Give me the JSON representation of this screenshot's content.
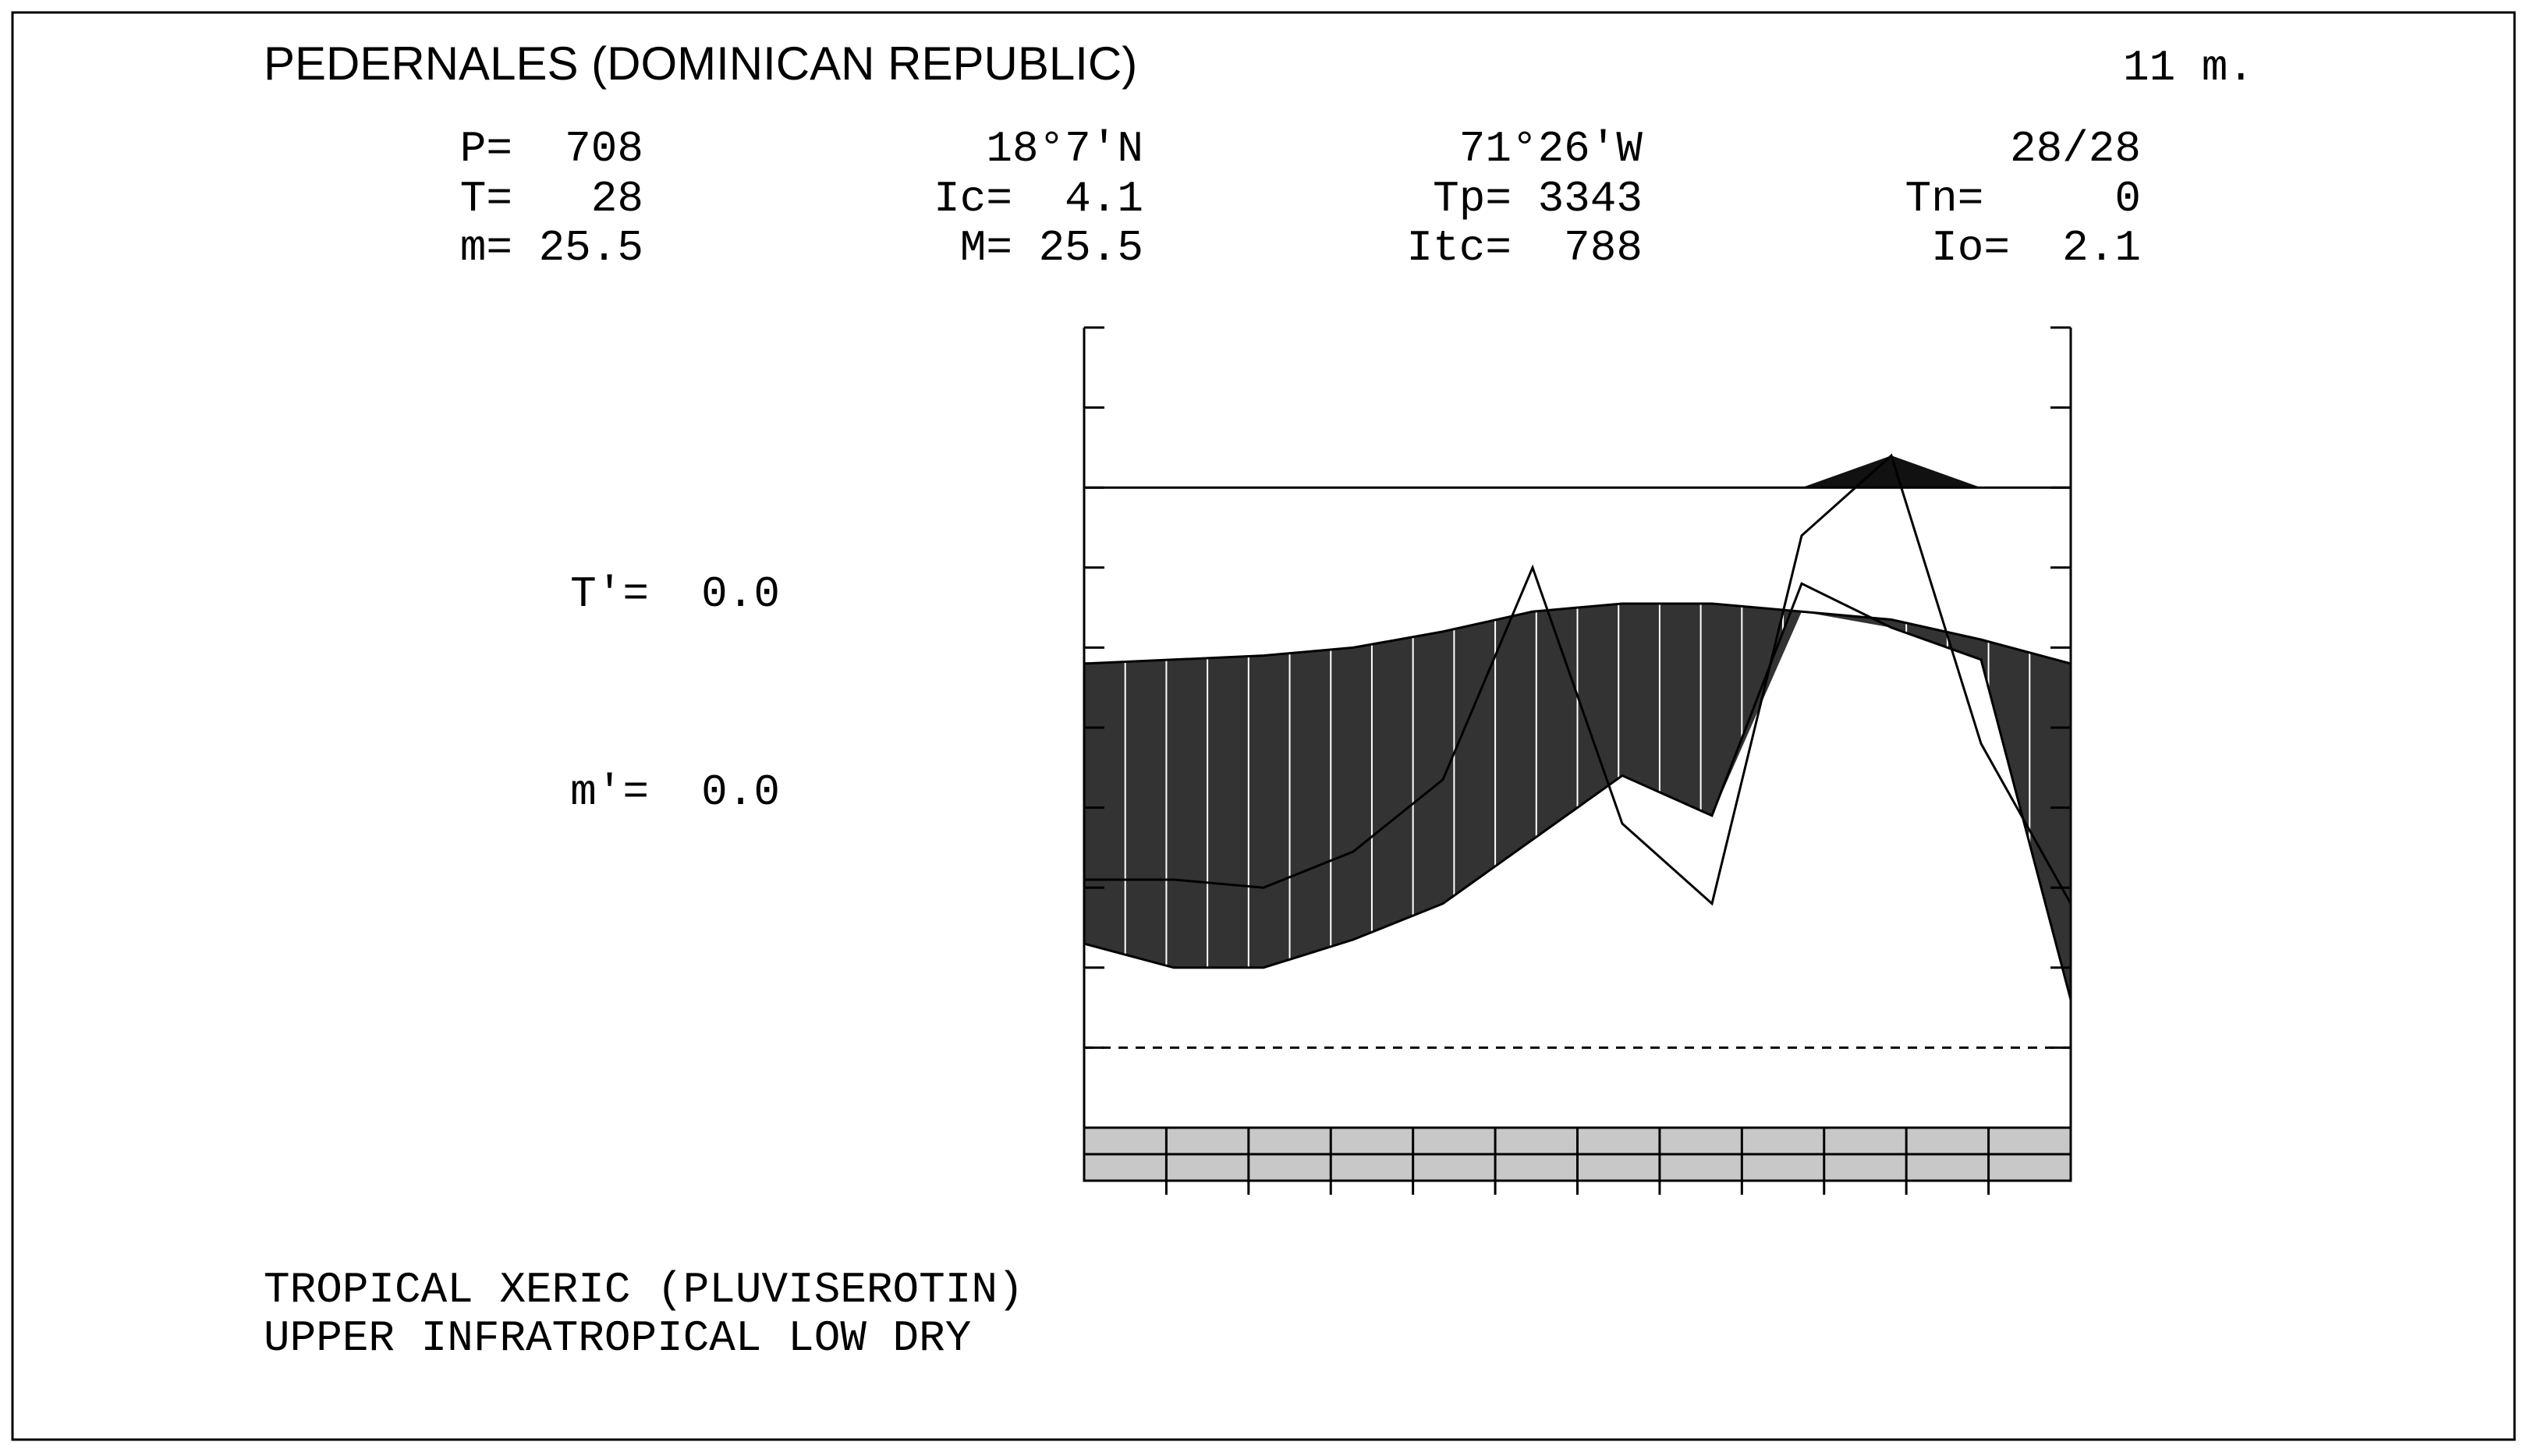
{
  "header": {
    "station": "PEDERNALES (DOMINICAN REPUBLIC)",
    "altitude": "11 m."
  },
  "stats": {
    "col1": [
      "P=  708",
      "T=   28",
      "m= 25.5"
    ],
    "col2": [
      "18°7'N",
      "Ic=  4.1",
      "M= 25.5"
    ],
    "col3": [
      "71°26'W",
      "Tp= 3343",
      "Itc=  788"
    ],
    "col4": [
      "28/28",
      "Tn=     0",
      "Io=  2.1"
    ]
  },
  "side_values": {
    "t_prime": "T'=  0.0",
    "m_prime": "m'=  0.0"
  },
  "classification": {
    "line1": "TROPICAL XERIC (PLUVISEROTIN)",
    "line2": "UPPER INFRATROPICAL LOW DRY"
  },
  "colors": {
    "dry_fill": "#333333",
    "humid_top_fill": "#111111",
    "frost_band": "#c8c8c8",
    "line": "#000000"
  },
  "chart_data": {
    "type": "line",
    "title": "",
    "xlabel": "",
    "ylabel": "",
    "x": [
      1,
      2,
      3,
      4,
      5,
      6,
      7,
      8,
      9,
      10,
      11,
      12
    ],
    "series": [
      {
        "values": [
          26.6,
          26.0,
          26.0,
          26.7,
          27.6,
          29.2,
          30.8,
          29.8,
          35.6,
          34.5,
          33.7,
          25.2
        ]
      },
      {
        "values": [
          28.2,
          28.2,
          28.0,
          28.9,
          30.7,
          36.0,
          29.6,
          27.6,
          36.8,
          38.8,
          31.6,
          27.6
        ]
      },
      {
        "values": [
          33.6,
          33.7,
          33.8,
          34.0,
          34.4,
          34.9,
          35.1,
          35.1,
          34.9,
          34.7,
          34.2,
          33.6
        ]
      }
    ],
    "ylim": [
      22,
      42
    ],
    "ref_lines": [
      38,
      24
    ],
    "months": 12
  }
}
